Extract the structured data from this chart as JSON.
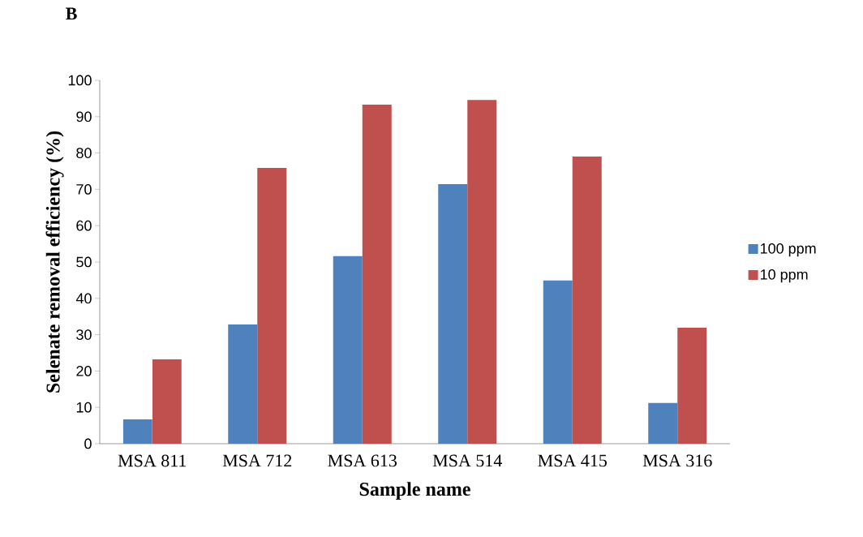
{
  "chart_data": {
    "type": "bar",
    "title": "B",
    "xlabel": "Sample name",
    "ylabel": "Selenate removal efficiency (%)",
    "categories": [
      "MSA 811",
      "MSA 712",
      "MSA 613",
      "MSA 514",
      "MSA 415",
      "MSA 316"
    ],
    "series": [
      {
        "name": "100 ppm",
        "color": "#4f81bd",
        "values": [
          6.7,
          32.8,
          51.6,
          71.4,
          44.9,
          11.2
        ]
      },
      {
        "name": "10 ppm",
        "color": "#c0504d",
        "values": [
          23.2,
          75.9,
          93.3,
          94.6,
          79.0,
          31.9
        ]
      }
    ],
    "ylim": [
      0,
      100
    ],
    "yticks": [
      0,
      10,
      20,
      30,
      40,
      50,
      60,
      70,
      80,
      90,
      100
    ],
    "grid": false,
    "legend": "right"
  }
}
